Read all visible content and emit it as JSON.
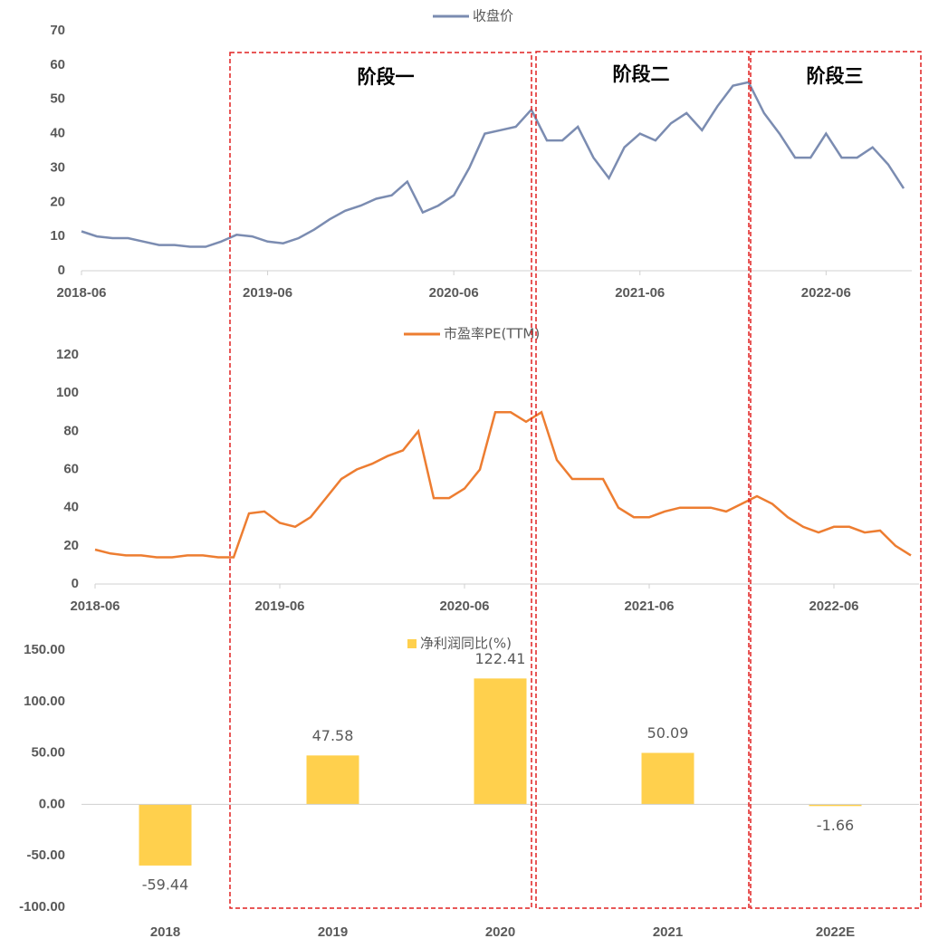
{
  "phases": [
    "阶段一",
    "阶段二",
    "阶段三"
  ],
  "chart_data": [
    {
      "type": "line",
      "x": [
        "2018-06",
        "2018-07",
        "2018-08",
        "2018-09",
        "2018-10",
        "2018-11",
        "2018-12",
        "2019-01",
        "2019-02",
        "2019-03",
        "2019-04",
        "2019-05",
        "2019-06",
        "2019-07",
        "2019-08",
        "2019-09",
        "2019-10",
        "2019-11",
        "2019-12",
        "2020-01",
        "2020-02",
        "2020-03",
        "2020-04",
        "2020-05",
        "2020-06",
        "2020-07",
        "2020-08",
        "2020-09",
        "2020-10",
        "2020-11",
        "2020-12",
        "2021-01",
        "2021-02",
        "2021-03",
        "2021-04",
        "2021-05",
        "2021-06",
        "2021-07",
        "2021-08",
        "2021-09",
        "2021-10",
        "2021-11",
        "2021-12",
        "2022-01",
        "2022-02",
        "2022-03",
        "2022-04",
        "2022-05",
        "2022-06",
        "2022-07",
        "2022-08",
        "2022-09",
        "2022-10",
        "2022-11"
      ],
      "series": [
        {
          "name": "收盘价",
          "color": "#7b8cb1",
          "values": [
            11.5,
            10,
            9.5,
            9.5,
            8.5,
            7.5,
            7.5,
            7,
            7,
            8.5,
            10.5,
            10,
            8.5,
            8,
            9.5,
            12,
            15,
            17.5,
            19,
            21,
            22,
            26,
            17,
            19,
            22,
            30,
            40,
            41,
            42,
            47,
            38,
            38,
            42,
            33,
            27,
            36,
            40,
            38,
            43,
            46,
            41,
            48,
            54,
            55,
            46,
            40,
            33,
            33,
            40,
            33,
            33,
            36,
            31,
            24
          ]
        }
      ],
      "xlim": [
        "2018-06",
        "2022-11"
      ],
      "xticks": [
        "2018-06",
        "2019-06",
        "2020-06",
        "2021-06",
        "2022-06"
      ],
      "ylim": [
        0,
        70
      ],
      "yticks": [
        0,
        10,
        20,
        30,
        40,
        50,
        60,
        70
      ]
    },
    {
      "type": "line",
      "x": [
        "2018-06",
        "2018-07",
        "2018-08",
        "2018-09",
        "2018-10",
        "2018-11",
        "2018-12",
        "2019-01",
        "2019-02",
        "2019-03",
        "2019-04",
        "2019-05",
        "2019-06",
        "2019-07",
        "2019-08",
        "2019-09",
        "2019-10",
        "2019-11",
        "2019-12",
        "2020-01",
        "2020-02",
        "2020-03",
        "2020-04",
        "2020-05",
        "2020-06",
        "2020-07",
        "2020-08",
        "2020-09",
        "2020-10",
        "2020-11",
        "2020-12",
        "2021-01",
        "2021-02",
        "2021-03",
        "2021-04",
        "2021-05",
        "2021-06",
        "2021-07",
        "2021-08",
        "2021-09",
        "2021-10",
        "2021-11",
        "2021-12",
        "2022-01",
        "2022-02",
        "2022-03",
        "2022-04",
        "2022-05",
        "2022-06",
        "2022-07",
        "2022-08",
        "2022-09",
        "2022-10",
        "2022-11"
      ],
      "series": [
        {
          "name": "市盈率PE(TTM)",
          "color": "#ed7d31",
          "values": [
            18,
            16,
            15,
            15,
            14,
            14,
            15,
            15,
            14,
            14,
            37,
            38,
            32,
            30,
            35,
            45,
            55,
            60,
            63,
            67,
            70,
            80,
            45,
            45,
            50,
            60,
            90,
            90,
            85,
            90,
            65,
            55,
            55,
            55,
            40,
            35,
            35,
            38,
            40,
            40,
            40,
            38,
            42,
            46,
            42,
            35,
            30,
            27,
            30,
            30,
            27,
            28,
            20,
            15
          ]
        }
      ],
      "xlim": [
        "2018-06",
        "2022-11"
      ],
      "xticks": [
        "2018-06",
        "2019-06",
        "2020-06",
        "2021-06",
        "2022-06"
      ],
      "ylim": [
        0,
        120
      ],
      "yticks": [
        0,
        20,
        40,
        60,
        80,
        100,
        120
      ]
    },
    {
      "type": "bar",
      "categories": [
        "2018",
        "2019",
        "2020",
        "2021",
        "2022E"
      ],
      "series": [
        {
          "name": "净利润同比(%)",
          "color": "#ffd04d",
          "values": [
            -59.44,
            47.58,
            122.41,
            50.09,
            -1.66
          ]
        }
      ],
      "ylim": [
        -100,
        150
      ],
      "yticks": [
        {
          "value": -100,
          "label": "-100.00"
        },
        {
          "value": -50,
          "label": "-50.00"
        },
        {
          "value": 0,
          "label": "0.00"
        },
        {
          "value": 50,
          "label": "50.00"
        },
        {
          "value": 100,
          "label": "100.00"
        },
        {
          "value": 150,
          "label": "150.00"
        }
      ]
    }
  ]
}
